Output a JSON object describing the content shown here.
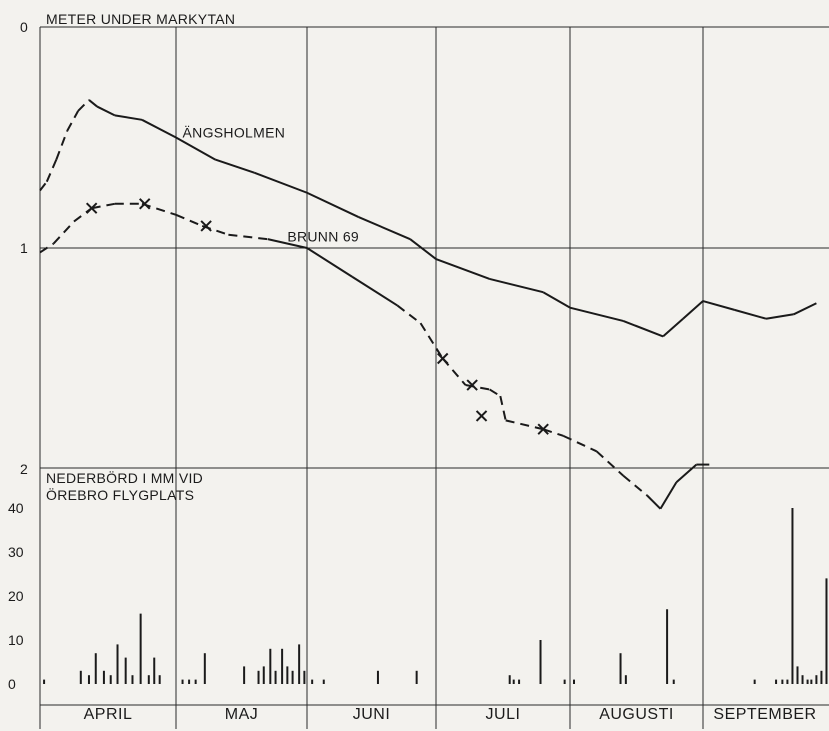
{
  "chart_data": [
    {
      "type": "line",
      "title": "METER UNDER MARKYTAN",
      "y_reversed": true,
      "ylim": [
        0,
        2
      ],
      "y_ticks": [
        "0",
        "1",
        "2"
      ],
      "grid": true,
      "x_categories": [
        "APRIL",
        "MAJ",
        "JUNI",
        "JULI",
        "AUGUSTI",
        "SEPTEMBER"
      ],
      "x_unit": "month (decimal, 0 = start of April)",
      "series": [
        {
          "name": "ÄNGSHOLMEN",
          "label_at": [
            1.05,
            0.5
          ],
          "points": [
            {
              "x": 0.0,
              "y": 0.74,
              "style": "solid"
            },
            {
              "x": 0.05,
              "y": 0.7,
              "style": "dashed"
            },
            {
              "x": 0.12,
              "y": 0.6,
              "style": "dashed"
            },
            {
              "x": 0.2,
              "y": 0.47,
              "style": "dashed"
            },
            {
              "x": 0.28,
              "y": 0.38,
              "style": "dashed"
            },
            {
              "x": 0.36,
              "y": 0.33,
              "style": "dashed"
            },
            {
              "x": 0.42,
              "y": 0.36,
              "style": "solid"
            },
            {
              "x": 0.55,
              "y": 0.4,
              "style": "solid"
            },
            {
              "x": 0.75,
              "y": 0.42,
              "style": "solid"
            },
            {
              "x": 1.0,
              "y": 0.5,
              "style": "solid"
            },
            {
              "x": 1.3,
              "y": 0.6,
              "style": "solid"
            },
            {
              "x": 1.6,
              "y": 0.66,
              "style": "solid"
            },
            {
              "x": 2.0,
              "y": 0.75,
              "style": "solid"
            },
            {
              "x": 2.4,
              "y": 0.86,
              "style": "solid"
            },
            {
              "x": 2.8,
              "y": 0.96,
              "style": "solid"
            },
            {
              "x": 3.0,
              "y": 1.05,
              "style": "solid"
            },
            {
              "x": 3.4,
              "y": 1.14,
              "style": "solid"
            },
            {
              "x": 3.8,
              "y": 1.2,
              "style": "solid"
            },
            {
              "x": 4.0,
              "y": 1.27,
              "style": "solid"
            },
            {
              "x": 4.4,
              "y": 1.33,
              "style": "solid"
            },
            {
              "x": 4.7,
              "y": 1.4,
              "style": "solid"
            },
            {
              "x": 4.85,
              "y": 1.32,
              "style": "solid"
            },
            {
              "x": 5.0,
              "y": 1.24,
              "style": "solid"
            },
            {
              "x": 5.25,
              "y": 1.28,
              "style": "solid"
            },
            {
              "x": 5.5,
              "y": 1.32,
              "style": "solid"
            },
            {
              "x": 5.72,
              "y": 1.3,
              "style": "solid"
            },
            {
              "x": 5.9,
              "y": 1.25,
              "style": "solid"
            }
          ]
        },
        {
          "name": "BRUNN 69",
          "label_at": [
            1.85,
            0.97
          ],
          "points": [
            {
              "x": 0.0,
              "y": 1.02,
              "style": "dashed"
            },
            {
              "x": 0.1,
              "y": 0.98,
              "style": "dashed"
            },
            {
              "x": 0.25,
              "y": 0.88,
              "style": "dashed"
            },
            {
              "x": 0.38,
              "y": 0.82,
              "style": "dashed"
            },
            {
              "x": 0.55,
              "y": 0.8,
              "style": "dashed"
            },
            {
              "x": 0.75,
              "y": 0.8,
              "style": "dashed"
            },
            {
              "x": 1.0,
              "y": 0.85,
              "style": "dashed"
            },
            {
              "x": 1.2,
              "y": 0.9,
              "style": "dashed"
            },
            {
              "x": 1.4,
              "y": 0.94,
              "style": "dashed"
            },
            {
              "x": 1.7,
              "y": 0.96,
              "style": "dashed"
            },
            {
              "x": 2.0,
              "y": 1.0,
              "style": "solid"
            },
            {
              "x": 2.35,
              "y": 1.13,
              "style": "solid"
            },
            {
              "x": 2.7,
              "y": 1.26,
              "style": "solid"
            },
            {
              "x": 2.88,
              "y": 1.34,
              "style": "dashed"
            },
            {
              "x": 3.05,
              "y": 1.5,
              "style": "dashed"
            },
            {
              "x": 3.22,
              "y": 1.62,
              "style": "dashed"
            },
            {
              "x": 3.4,
              "y": 1.64,
              "style": "dashed"
            },
            {
              "x": 3.48,
              "y": 1.67,
              "style": "dashed"
            },
            {
              "x": 3.52,
              "y": 1.78,
              "style": "dashed"
            },
            {
              "x": 3.8,
              "y": 1.82,
              "style": "dashed"
            },
            {
              "x": 3.95,
              "y": 1.85,
              "style": "dashed"
            },
            {
              "x": 4.2,
              "y": 1.92,
              "style": "dashed"
            },
            {
              "x": 4.4,
              "y": 2.03,
              "style": "dashed"
            },
            {
              "x": 4.58,
              "y": 2.12,
              "style": "dashed"
            },
            {
              "x": 4.68,
              "y": 2.18,
              "style": "solid"
            },
            {
              "x": 4.8,
              "y": 2.06,
              "style": "solid"
            },
            {
              "x": 4.95,
              "y": 1.98,
              "style": "solid"
            },
            {
              "x": 5.05,
              "y": 1.98,
              "style": "solid"
            }
          ],
          "markers": [
            {
              "x": 0.38,
              "y": 0.82
            },
            {
              "x": 0.77,
              "y": 0.8
            },
            {
              "x": 1.23,
              "y": 0.9
            },
            {
              "x": 3.05,
              "y": 1.5
            },
            {
              "x": 3.27,
              "y": 1.62
            },
            {
              "x": 3.34,
              "y": 1.76
            },
            {
              "x": 3.8,
              "y": 1.82
            }
          ]
        }
      ]
    },
    {
      "type": "bar",
      "title_lines": [
        "NEDERBÖRD I MM VID",
        "ÖREBRO FLYGPLATS"
      ],
      "ylim": [
        0,
        40
      ],
      "y_ticks": [
        "0",
        "10",
        "20",
        "30",
        "40"
      ],
      "x_unit": "month (decimal, 0 = start of April)",
      "bars": [
        {
          "x": 0.03,
          "v": 1
        },
        {
          "x": 0.3,
          "v": 3
        },
        {
          "x": 0.36,
          "v": 2
        },
        {
          "x": 0.41,
          "v": 7
        },
        {
          "x": 0.47,
          "v": 3
        },
        {
          "x": 0.52,
          "v": 2
        },
        {
          "x": 0.57,
          "v": 9
        },
        {
          "x": 0.63,
          "v": 6
        },
        {
          "x": 0.68,
          "v": 2
        },
        {
          "x": 0.74,
          "v": 16
        },
        {
          "x": 0.8,
          "v": 2
        },
        {
          "x": 0.84,
          "v": 6
        },
        {
          "x": 0.88,
          "v": 2
        },
        {
          "x": 1.05,
          "v": 1
        },
        {
          "x": 1.1,
          "v": 1
        },
        {
          "x": 1.15,
          "v": 1
        },
        {
          "x": 1.22,
          "v": 7
        },
        {
          "x": 1.52,
          "v": 4
        },
        {
          "x": 1.63,
          "v": 3
        },
        {
          "x": 1.67,
          "v": 4
        },
        {
          "x": 1.72,
          "v": 8
        },
        {
          "x": 1.76,
          "v": 3
        },
        {
          "x": 1.81,
          "v": 8
        },
        {
          "x": 1.85,
          "v": 4
        },
        {
          "x": 1.89,
          "v": 3
        },
        {
          "x": 1.94,
          "v": 9
        },
        {
          "x": 1.98,
          "v": 3
        },
        {
          "x": 2.04,
          "v": 1
        },
        {
          "x": 2.13,
          "v": 1
        },
        {
          "x": 2.55,
          "v": 3
        },
        {
          "x": 2.85,
          "v": 3
        },
        {
          "x": 3.55,
          "v": 2
        },
        {
          "x": 3.58,
          "v": 1
        },
        {
          "x": 3.62,
          "v": 1
        },
        {
          "x": 3.78,
          "v": 10
        },
        {
          "x": 3.96,
          "v": 1
        },
        {
          "x": 4.03,
          "v": 1
        },
        {
          "x": 4.38,
          "v": 7
        },
        {
          "x": 4.42,
          "v": 2
        },
        {
          "x": 4.73,
          "v": 17
        },
        {
          "x": 4.78,
          "v": 1
        },
        {
          "x": 5.41,
          "v": 1
        },
        {
          "x": 5.58,
          "v": 1
        },
        {
          "x": 5.63,
          "v": 1
        },
        {
          "x": 5.67,
          "v": 1
        },
        {
          "x": 5.71,
          "v": 40
        },
        {
          "x": 5.75,
          "v": 4
        },
        {
          "x": 5.79,
          "v": 2
        },
        {
          "x": 5.83,
          "v": 1
        },
        {
          "x": 5.86,
          "v": 1
        },
        {
          "x": 5.9,
          "v": 2
        },
        {
          "x": 5.94,
          "v": 3
        },
        {
          "x": 5.98,
          "v": 24
        },
        {
          "x": 6.02,
          "v": 5
        }
      ],
      "x_labels": [
        "APRIL",
        "MAJ",
        "JUNI",
        "JULI",
        "AUGUSTI",
        "SEPTEMBER"
      ]
    }
  ]
}
